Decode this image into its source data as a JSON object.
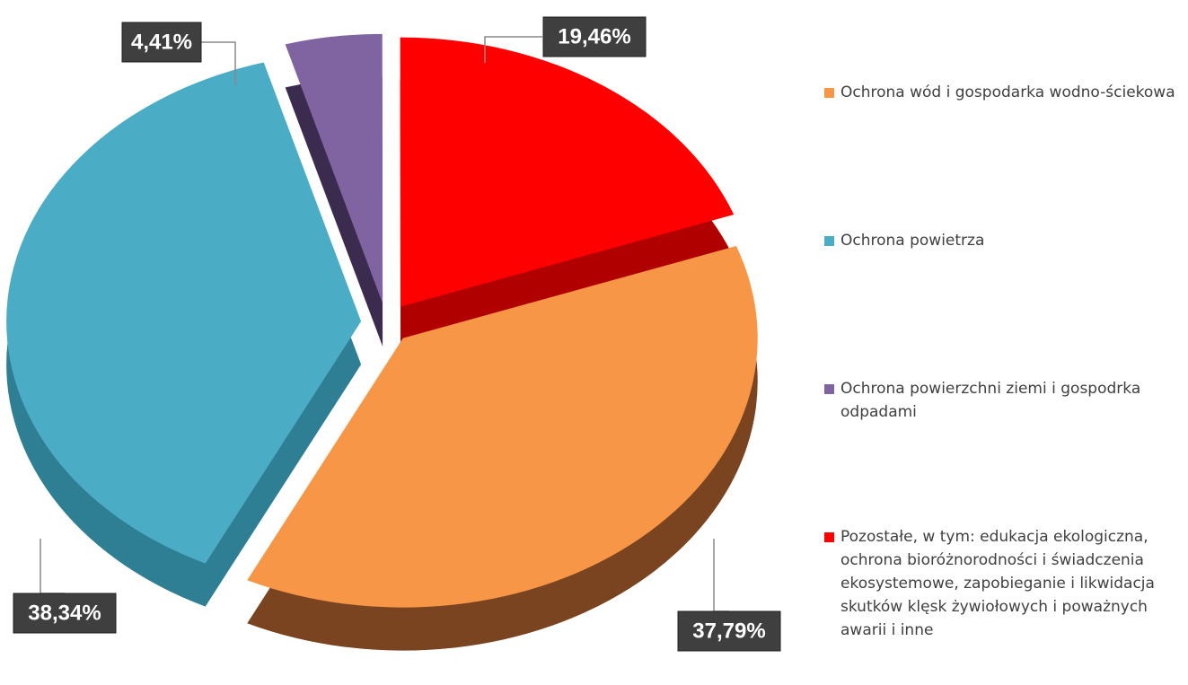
{
  "chart_data": {
    "type": "pie",
    "categories": [
      "Ochrona wód i gospodarka wodno-ściekowa",
      "Ochrona powietrza",
      "Ochrona powierzchni ziemi i gospodrka odpadami",
      "Pozostałe, w tym: edukacja ekologiczna, ochrona bioróżnorodności i świadczenia ekosystemowe, zapobieganie i likwidacja skutków klęsk żywiołowych i poważnych awarii i inne"
    ],
    "values": [
      37.79,
      38.34,
      4.41,
      19.46
    ],
    "value_labels": [
      "37,79%",
      "38,34%",
      "4,41%",
      "19,46%"
    ],
    "colors": [
      "#f79646",
      "#4bacc6",
      "#8064a2",
      "#ff0000"
    ],
    "legend": "right"
  }
}
